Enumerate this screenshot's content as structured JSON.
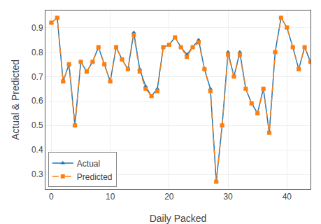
{
  "chart_data": {
    "type": "line",
    "x": [
      0,
      1,
      2,
      3,
      4,
      5,
      6,
      7,
      8,
      9,
      10,
      11,
      12,
      13,
      14,
      15,
      16,
      17,
      18,
      19,
      20,
      21,
      22,
      23,
      24,
      25,
      26,
      27,
      28,
      29,
      30,
      31,
      32,
      33,
      34,
      35,
      36,
      37,
      38,
      39,
      40,
      41,
      42,
      43,
      44
    ],
    "series": [
      {
        "name": "Actual",
        "color": "#1f77b4",
        "marker": "triangle-up",
        "line_style": "solid",
        "values": [
          0.92,
          0.94,
          0.68,
          0.75,
          0.5,
          0.76,
          0.72,
          0.76,
          0.82,
          0.75,
          0.68,
          0.82,
          0.77,
          0.73,
          0.88,
          0.73,
          0.66,
          0.62,
          0.65,
          0.82,
          0.83,
          0.86,
          0.82,
          0.79,
          0.82,
          0.85,
          0.73,
          0.65,
          0.27,
          0.5,
          0.8,
          0.7,
          0.8,
          0.65,
          0.59,
          0.55,
          0.65,
          0.47,
          0.8,
          0.94,
          0.9,
          0.82,
          0.73,
          0.82,
          0.76
        ]
      },
      {
        "name": "Predicted",
        "color": "#ff7f0e",
        "marker": "square",
        "line_style": "dashed",
        "values": [
          0.92,
          0.94,
          0.68,
          0.75,
          0.5,
          0.76,
          0.72,
          0.76,
          0.82,
          0.75,
          0.68,
          0.82,
          0.77,
          0.73,
          0.87,
          0.72,
          0.65,
          0.62,
          0.64,
          0.82,
          0.83,
          0.86,
          0.82,
          0.78,
          0.82,
          0.84,
          0.73,
          0.64,
          0.27,
          0.5,
          0.79,
          0.7,
          0.79,
          0.65,
          0.59,
          0.55,
          0.65,
          0.47,
          0.8,
          0.94,
          0.9,
          0.82,
          0.73,
          0.82,
          0.76
        ]
      }
    ],
    "xlabel": "Daily Packed",
    "ylabel": "Actual & Predicted",
    "xlim": [
      -1,
      44
    ],
    "xticks": [
      0,
      10,
      20,
      30,
      40
    ],
    "ylim": [
      0.24,
      0.97
    ],
    "yticks": [
      0.3,
      0.4,
      0.5,
      0.6,
      0.7,
      0.8,
      0.9
    ],
    "grid": true,
    "legend": "lower left"
  }
}
